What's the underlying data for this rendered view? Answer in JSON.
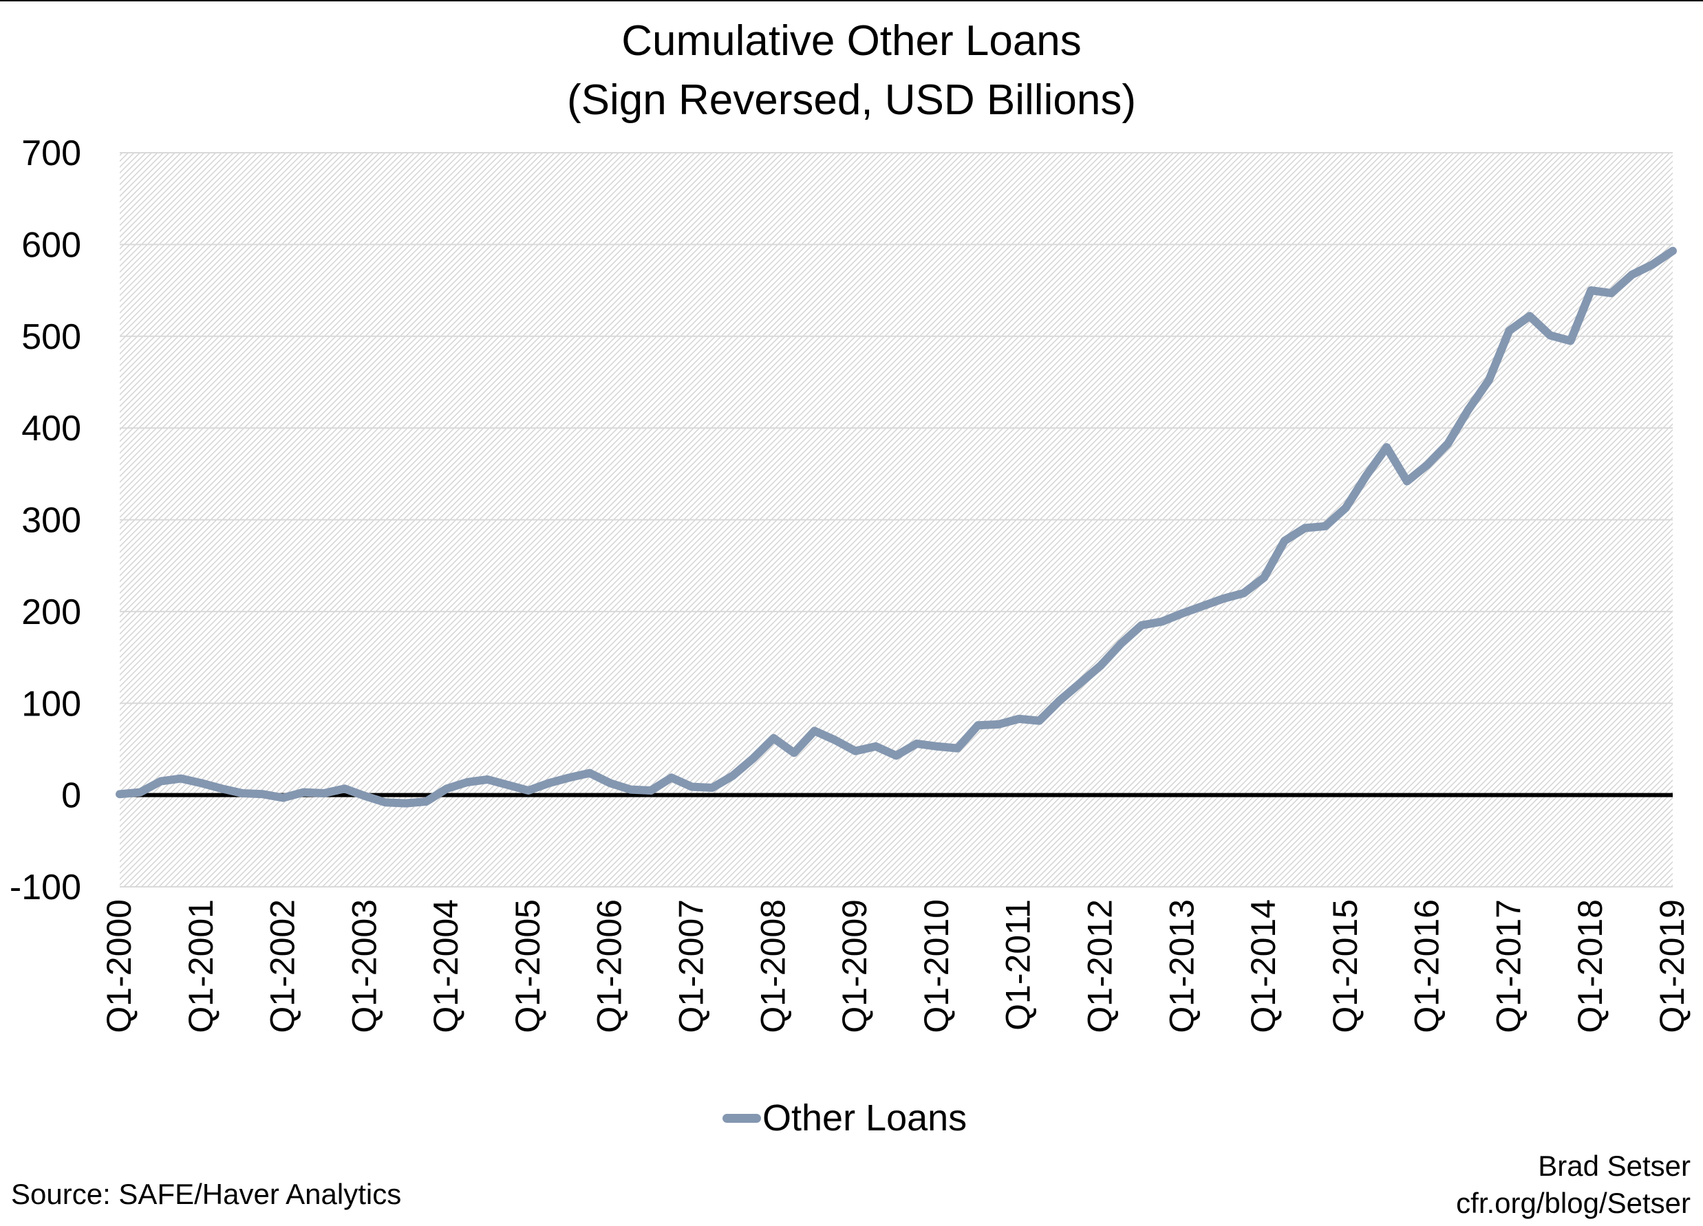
{
  "title_line1": "Cumulative Other Loans",
  "title_line2": "(Sign Reversed, USD Billions)",
  "legend": {
    "label": "Other Loans",
    "color": "#8497B0"
  },
  "source": "Source: SAFE/Haver Analytics",
  "credit": {
    "author": "Brad Setser",
    "url": "cfr.org/blog/Setser"
  },
  "chart_data": {
    "type": "line",
    "title": "Cumulative Other Loans (Sign Reversed, USD Billions)",
    "xlabel": "",
    "ylabel": "",
    "ylim": [
      -100,
      700
    ],
    "yticks": [
      -100,
      0,
      100,
      200,
      300,
      400,
      500,
      600,
      700
    ],
    "grid": true,
    "legend_position": "bottom",
    "xtick_labels": [
      "Q1-2000",
      "Q1-2001",
      "Q1-2002",
      "Q1-2003",
      "Q1-2004",
      "Q1-2005",
      "Q1-2006",
      "Q1-2007",
      "Q1-2008",
      "Q1-2009",
      "Q1-2010",
      "Q1-2011",
      "Q1-2012",
      "Q1-2013",
      "Q1-2014",
      "Q1-2015",
      "Q1-2016",
      "Q1-2017",
      "Q1-2018",
      "Q1-2019"
    ],
    "series": [
      {
        "name": "Other Loans",
        "color": "#8497B0",
        "start": "Q1-2000",
        "frequency": "quarterly",
        "values": [
          1,
          3,
          15,
          18,
          13,
          7,
          2,
          1,
          -3,
          3,
          2,
          7,
          -1,
          -8,
          -9,
          -7,
          7,
          14,
          17,
          11,
          5,
          13,
          19,
          24,
          13,
          6,
          5,
          19,
          9,
          8,
          21,
          40,
          62,
          46,
          70,
          60,
          48,
          53,
          43,
          56,
          53,
          51,
          76,
          77,
          83,
          81,
          103,
          122,
          141,
          165,
          185,
          189,
          198,
          206,
          214,
          220,
          237,
          277,
          291,
          293,
          313,
          348,
          379,
          342,
          360,
          383,
          420,
          452,
          506,
          522,
          501,
          495,
          550,
          547,
          567,
          578,
          593
        ]
      }
    ]
  }
}
